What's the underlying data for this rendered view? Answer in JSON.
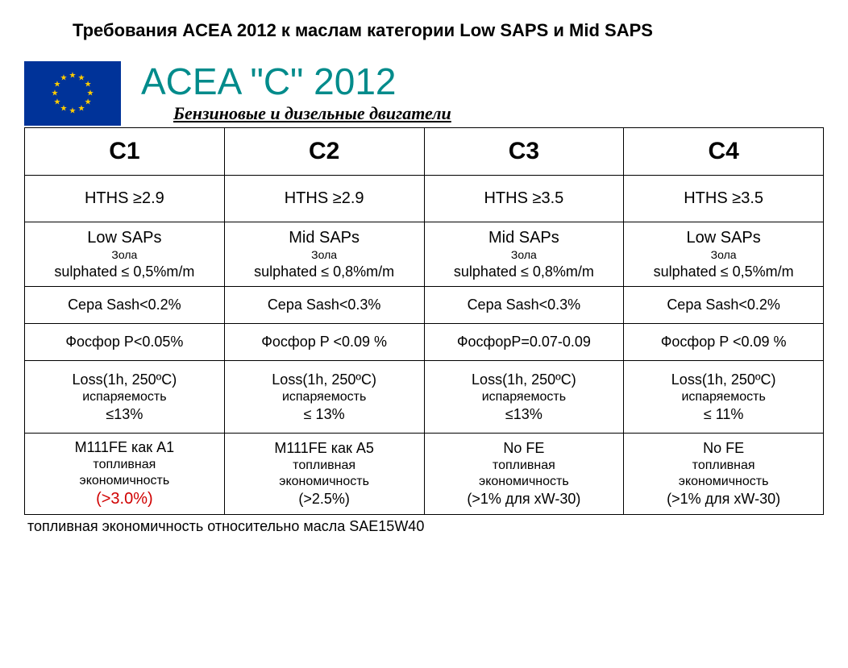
{
  "page_title": "Требования ACEA 2012 к маслам категории Low SAPS и Mid SAPS",
  "main_heading": "ACEA \"C\"  2012",
  "sub_heading": "Бензиновые и дизельные двигатели",
  "footnote": "топливная экономичность относительно масла SAE15W40",
  "flag": {
    "bg": "#003399",
    "star_color": "#ffcc00",
    "star_count": 12
  },
  "colors": {
    "heading": "#008b8b",
    "border": "#000000",
    "highlight": "#d00000",
    "background": "#ffffff",
    "text": "#000000"
  },
  "table": {
    "column_widths_pct": [
      25,
      25,
      25,
      25
    ],
    "headers": [
      "C1",
      "C2",
      "C3",
      "C4"
    ],
    "header_fontsize": 30,
    "rows": [
      {
        "key": "hths",
        "cells": [
          [
            {
              "text": "HTHS ≥2.9",
              "size": 20
            }
          ],
          [
            {
              "text": "HTHS ≥2.9",
              "size": 20
            }
          ],
          [
            {
              "text": "HTHS ≥3.5",
              "size": 20
            }
          ],
          [
            {
              "text": "HTHS ≥3.5",
              "size": 20
            }
          ]
        ]
      },
      {
        "key": "saps",
        "cells": [
          [
            {
              "text": "Low SAPs",
              "size": 20
            },
            {
              "text": "Зола",
              "size": 14
            },
            {
              "text": "sulphated ≤ 0,5%m/m",
              "size": 18
            }
          ],
          [
            {
              "text": "Mid SAPs",
              "size": 20
            },
            {
              "text": "Зола",
              "size": 14
            },
            {
              "text": "sulphated ≤ 0,8%m/m",
              "size": 18
            }
          ],
          [
            {
              "text": "Mid SAPs",
              "size": 20
            },
            {
              "text": "Зола",
              "size": 14
            },
            {
              "text": "sulphated ≤ 0,8%m/m",
              "size": 18
            }
          ],
          [
            {
              "text": "Low SAPs",
              "size": 20
            },
            {
              "text": "Зола",
              "size": 14
            },
            {
              "text": "sulphated ≤ 0,5%m/m",
              "size": 18
            }
          ]
        ]
      },
      {
        "key": "sera",
        "cells": [
          [
            {
              "text": "Сера Sash<0.2%",
              "size": 18
            }
          ],
          [
            {
              "text": "Сера Sash<0.3%",
              "size": 18
            }
          ],
          [
            {
              "text": "Сера Sash<0.3%",
              "size": 18
            }
          ],
          [
            {
              "text": "Сера Sash<0.2%",
              "size": 18
            }
          ]
        ]
      },
      {
        "key": "phos",
        "cells": [
          [
            {
              "text": "Фосфор P<0.05%",
              "size": 18
            }
          ],
          [
            {
              "text": "Фосфор P <0.09 %",
              "size": 18
            }
          ],
          [
            {
              "text": "ФосфорP=0.07-0.09",
              "size": 18
            }
          ],
          [
            {
              "text": "Фосфор P <0.09 %",
              "size": 18
            }
          ]
        ]
      },
      {
        "key": "loss",
        "cells": [
          [
            {
              "text": "Loss(1h, 250ºC)",
              "size": 18
            },
            {
              "text": "испаряемость",
              "size": 16
            },
            {
              "text": "≤13%",
              "size": 18
            }
          ],
          [
            {
              "text": "Loss(1h, 250ºC)",
              "size": 18
            },
            {
              "text": "испаряемость",
              "size": 16
            },
            {
              "text": "≤ 13%",
              "size": 18
            }
          ],
          [
            {
              "text": "Loss(1h, 250ºC)",
              "size": 18
            },
            {
              "text": "испаряемость",
              "size": 16
            },
            {
              "text": "≤13%",
              "size": 18
            }
          ],
          [
            {
              "text": "Loss(1h, 250ºC)",
              "size": 18
            },
            {
              "text": "испаряемость",
              "size": 16
            },
            {
              "text": "≤ 11%",
              "size": 18
            }
          ]
        ]
      },
      {
        "key": "fe",
        "cells": [
          [
            {
              "text": "M111FE как A1",
              "size": 18
            },
            {
              "text": "топливная",
              "size": 16
            },
            {
              "text": "экономичность",
              "size": 16
            },
            {
              "text": "(>3.0%)",
              "size": 20,
              "red": true
            }
          ],
          [
            {
              "text": "M111FE как A5",
              "size": 18
            },
            {
              "text": "топливная",
              "size": 16
            },
            {
              "text": "экономичность",
              "size": 16
            },
            {
              "text": "(>2.5%)",
              "size": 18
            }
          ],
          [
            {
              "text": "No FE",
              "size": 18
            },
            {
              "text": "топливная",
              "size": 16
            },
            {
              "text": "экономичность",
              "size": 16
            },
            {
              "text": "(>1% для xW-30)",
              "size": 18
            }
          ],
          [
            {
              "text": "No FE",
              "size": 18
            },
            {
              "text": "топливная",
              "size": 16
            },
            {
              "text": "экономичность",
              "size": 16
            },
            {
              "text": "(>1% для xW-30)",
              "size": 18
            }
          ]
        ]
      }
    ]
  }
}
